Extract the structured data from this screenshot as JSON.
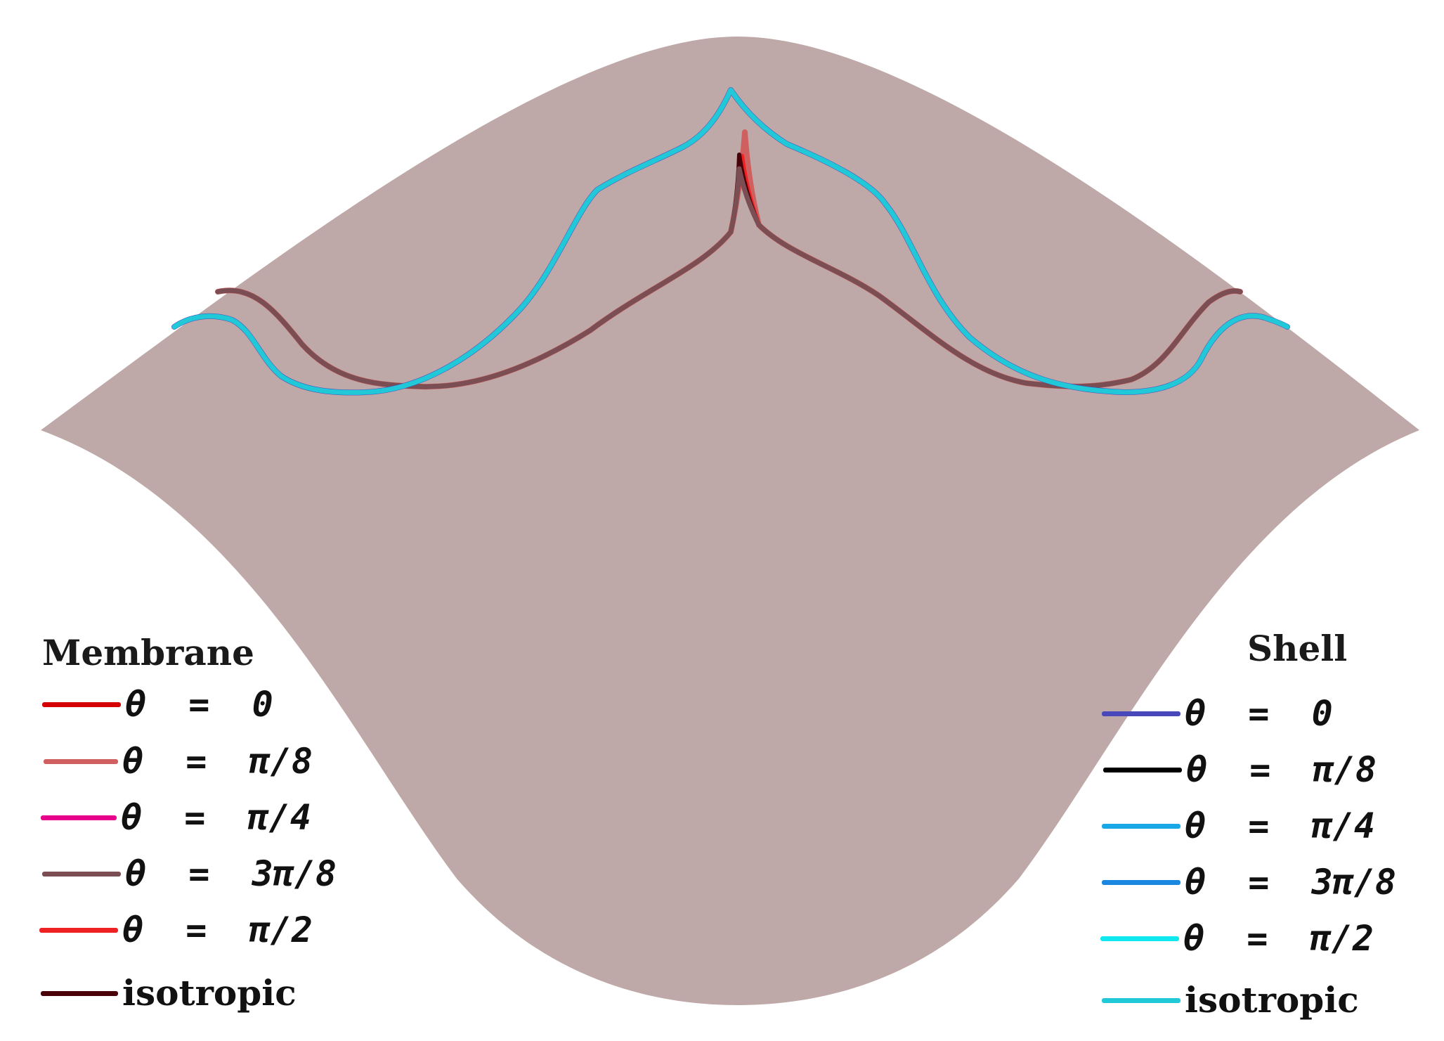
{
  "surface_color": "#bea8a8",
  "membrane_legend": {
    "title": "Membrane",
    "entries": [
      {
        "label": "θ  =  0",
        "color": "#d40000"
      },
      {
        "label": "θ  =  π/8",
        "color": "#d06060"
      },
      {
        "label": "θ  =  π/4",
        "color": "#e8008a"
      },
      {
        "label": "θ  =  3π/8",
        "color": "#7a4e52"
      },
      {
        "label": "θ  =  π/2",
        "color": "#ee2222"
      },
      {
        "label": "isotropic",
        "color": "#4a0008"
      }
    ]
  },
  "shell_legend": {
    "title": "Shell",
    "entries": [
      {
        "label": "θ  =  0",
        "color": "#4848bb"
      },
      {
        "label": "θ  =  π/8",
        "color": "#000000"
      },
      {
        "label": "θ  =  π/4",
        "color": "#18a8e8"
      },
      {
        "label": "θ  =  3π/8",
        "color": "#1a88e0"
      },
      {
        "label": "θ  =  π/2",
        "color": "#10e8f0"
      },
      {
        "label": "isotropic",
        "color": "#20c8d8"
      }
    ]
  }
}
